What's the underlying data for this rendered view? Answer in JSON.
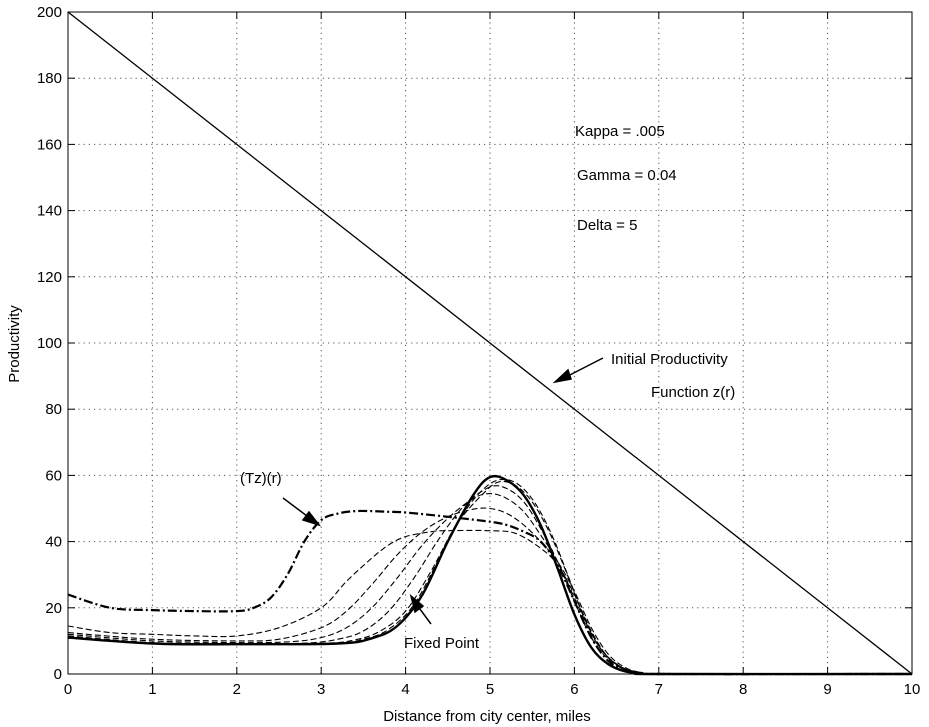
{
  "chart_data": {
    "type": "line",
    "title": "",
    "xlabel": "Distance from city center, miles",
    "ylabel": "Productivity",
    "xlim": [
      0,
      10
    ],
    "ylim": [
      0,
      200
    ],
    "xticks": [
      0,
      1,
      2,
      3,
      4,
      5,
      6,
      7,
      8,
      9,
      10
    ],
    "yticks": [
      0,
      20,
      40,
      60,
      80,
      100,
      120,
      140,
      160,
      180,
      200
    ],
    "grid": true,
    "parameters": [
      "Kappa = .005",
      "Gamma = 0.04",
      "Delta = 5"
    ],
    "annotations": [
      {
        "lines": [
          "Initial Productivity",
          "Function z(r)"
        ],
        "target": [
          5.8,
          88
        ]
      },
      {
        "lines": [
          "(Tz)(r)"
        ],
        "target": [
          3.0,
          45
        ]
      },
      {
        "lines": [
          "Fixed Point"
        ],
        "target": [
          4.15,
          22
        ]
      }
    ],
    "series": [
      {
        "style": "solid-thin",
        "x": [
          0,
          10
        ],
        "y": [
          200,
          0
        ]
      },
      {
        "style": "dashdot-thick",
        "x": [
          0,
          0.5,
          1,
          1.5,
          2,
          2.2,
          2.4,
          2.6,
          2.8,
          3.0,
          3.2,
          3.4,
          3.6,
          3.8,
          4.0,
          4.5,
          5.0,
          5.2,
          5.4,
          5.6,
          5.8,
          6.0,
          6.2,
          6.4,
          6.6,
          6.8,
          7.0,
          10
        ],
        "y": [
          24,
          20,
          19.3,
          19,
          19,
          20,
          23,
          30,
          40,
          46.5,
          48.5,
          49.2,
          49.2,
          49,
          48.8,
          47.5,
          46,
          45,
          43,
          40,
          33,
          22,
          11,
          4,
          1,
          0.3,
          0,
          0
        ]
      },
      {
        "style": "dashed",
        "x": [
          0,
          0.5,
          1,
          1.5,
          2,
          2.5,
          3.0,
          3.3,
          3.6,
          3.8,
          4.0,
          4.3,
          4.5,
          5.0,
          5.3,
          5.6,
          5.8,
          6.0,
          6.2,
          6.4,
          6.6,
          6.8,
          7.0,
          10
        ],
        "y": [
          14.5,
          12.5,
          12,
          11.5,
          11.5,
          14,
          20,
          28,
          35,
          39,
          41.5,
          43,
          43.3,
          43.3,
          42.5,
          38,
          33,
          24,
          13,
          5,
          1.5,
          0.3,
          0,
          0
        ]
      },
      {
        "style": "dashed",
        "x": [
          0,
          1,
          2,
          2.5,
          3.0,
          3.3,
          3.6,
          3.9,
          4.2,
          4.5,
          4.8,
          5.0,
          5.2,
          5.4,
          5.6,
          5.8,
          6.0,
          6.2,
          6.4,
          6.6,
          6.8,
          7.0,
          10
        ],
        "y": [
          12.5,
          10.5,
          10,
          10.5,
          14,
          19,
          27,
          36,
          43,
          47.5,
          49.8,
          50,
          48.5,
          45,
          40,
          34,
          25,
          14,
          6,
          2,
          0.4,
          0,
          0
        ]
      },
      {
        "style": "dashed",
        "x": [
          0,
          1,
          2,
          2.6,
          3.0,
          3.3,
          3.6,
          3.9,
          4.2,
          4.5,
          4.8,
          5.0,
          5.2,
          5.4,
          5.6,
          5.8,
          6.0,
          6.2,
          6.4,
          6.6,
          6.8,
          7.0,
          10
        ],
        "y": [
          12,
          10,
          9.5,
          9.7,
          11,
          14,
          20,
          29,
          39,
          47,
          53,
          54.5,
          53,
          49,
          42,
          34,
          23,
          12,
          5,
          1.5,
          0.3,
          0,
          0
        ]
      },
      {
        "style": "dashed",
        "x": [
          0,
          1,
          2,
          2.8,
          3.2,
          3.5,
          3.8,
          4.1,
          4.4,
          4.7,
          5.0,
          5.2,
          5.4,
          5.6,
          5.8,
          6.0,
          6.2,
          6.4,
          6.6,
          6.8,
          7.0,
          10
        ],
        "y": [
          11.5,
          9.5,
          9.2,
          9.3,
          10.5,
          13,
          19,
          29,
          41,
          51,
          56.5,
          56,
          52,
          44,
          34,
          22,
          11,
          4.5,
          1.3,
          0.3,
          0,
          0
        ]
      },
      {
        "style": "dashed",
        "x": [
          0,
          1,
          2,
          3.0,
          3.4,
          3.7,
          4.0,
          4.3,
          4.6,
          4.9,
          5.1,
          5.3,
          5.5,
          5.7,
          5.9,
          6.1,
          6.3,
          6.5,
          6.7,
          7.0,
          10
        ],
        "y": [
          11.3,
          9.3,
          9,
          9.2,
          10.3,
          13,
          19,
          31,
          45,
          54,
          58,
          57,
          52,
          43,
          31,
          18,
          8,
          3,
          0.8,
          0,
          0
        ]
      },
      {
        "style": "dashed",
        "x": [
          0,
          1,
          2,
          3.1,
          3.5,
          3.8,
          4.1,
          4.4,
          4.7,
          4.95,
          5.15,
          5.35,
          5.55,
          5.75,
          5.95,
          6.15,
          6.35,
          6.55,
          6.75,
          7.0,
          10
        ],
        "y": [
          11.1,
          9.2,
          9,
          9.1,
          10.5,
          13.5,
          21,
          35,
          49,
          56.5,
          58.8,
          57,
          51,
          41,
          28,
          15,
          6.5,
          2.2,
          0.6,
          0,
          0
        ]
      },
      {
        "style": "solid-thick",
        "x": [
          0,
          1,
          2,
          3.2,
          3.6,
          3.9,
          4.2,
          4.5,
          4.8,
          5.0,
          5.2,
          5.4,
          5.6,
          5.8,
          6.0,
          6.2,
          6.4,
          6.6,
          6.8,
          7.0,
          10
        ],
        "y": [
          11,
          9.2,
          9,
          9.2,
          10.8,
          14.5,
          24,
          40,
          54,
          59.5,
          58.5,
          54,
          45,
          32,
          18,
          8,
          3,
          0.8,
          0.2,
          0,
          0
        ]
      }
    ]
  }
}
